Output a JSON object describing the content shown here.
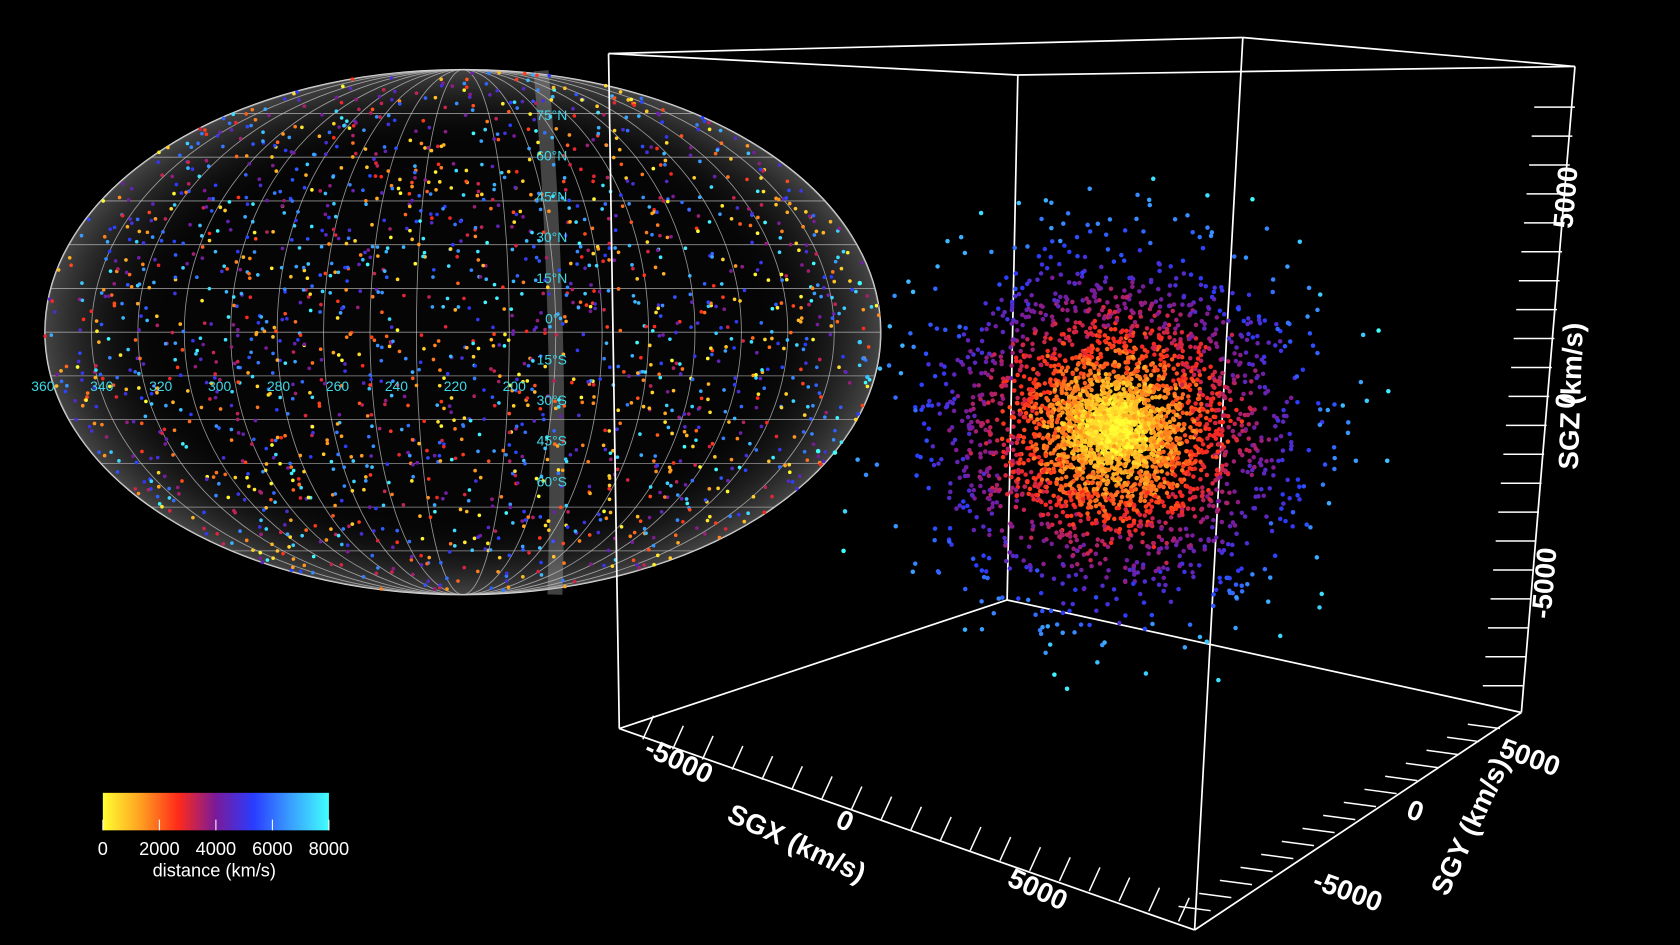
{
  "colorbar": {
    "ticks": [
      0,
      2000,
      4000,
      6000,
      8000
    ],
    "label": "distance (km/s)",
    "colors": [
      "#ffff33",
      "#ffa020",
      "#ff2a1a",
      "#7a1a9a",
      "#2a3cff",
      "#3aa0ff",
      "#40ffff"
    ]
  },
  "sky_map": {
    "longitude_labels": [
      "360",
      "340",
      "320",
      "300",
      "280",
      "260",
      "240",
      "220",
      "200"
    ],
    "latitude_labels": [
      "75°N",
      "60°N",
      "45°N",
      "30°N",
      "15°N",
      "0°",
      "15°S",
      "30°S",
      "45°S",
      "60°S"
    ]
  },
  "cube": {
    "x_axis": {
      "label": "SGX (km/s)",
      "ticks": [
        -5000,
        0,
        5000
      ]
    },
    "y_axis": {
      "label": "SGY (km/s)",
      "ticks": [
        5000,
        0,
        -5000
      ]
    },
    "z_axis": {
      "label": "SGZ (km/s)",
      "ticks": [
        5000,
        0,
        -5000
      ]
    }
  }
}
